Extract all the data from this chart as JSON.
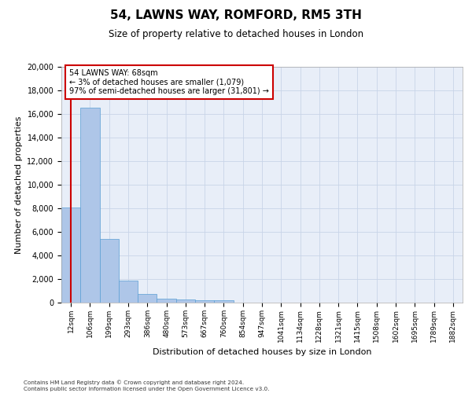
{
  "title": "54, LAWNS WAY, ROMFORD, RM5 3TH",
  "subtitle": "Size of property relative to detached houses in London",
  "xlabel": "Distribution of detached houses by size in London",
  "ylabel": "Number of detached properties",
  "categories": [
    "12sqm",
    "106sqm",
    "199sqm",
    "293sqm",
    "386sqm",
    "480sqm",
    "573sqm",
    "667sqm",
    "760sqm",
    "854sqm",
    "947sqm",
    "1041sqm",
    "1134sqm",
    "1228sqm",
    "1321sqm",
    "1415sqm",
    "1508sqm",
    "1602sqm",
    "1695sqm",
    "1789sqm",
    "1882sqm"
  ],
  "values": [
    8100,
    16500,
    5400,
    1850,
    750,
    350,
    270,
    230,
    200,
    0,
    0,
    0,
    0,
    0,
    0,
    0,
    0,
    0,
    0,
    0,
    0
  ],
  "bar_color": "#aec6e8",
  "bar_edge_color": "#5a9fd4",
  "grid_color": "#c8d4e8",
  "background_color": "#e8eef8",
  "property_line_color": "#cc0000",
  "annotation_text_line1": "54 LAWNS WAY: 68sqm",
  "annotation_text_line2": "← 3% of detached houses are smaller (1,079)",
  "annotation_text_line3": "97% of semi-detached houses are larger (31,801) →",
  "ylim": [
    0,
    20000
  ],
  "yticks": [
    0,
    2000,
    4000,
    6000,
    8000,
    10000,
    12000,
    14000,
    16000,
    18000,
    20000
  ],
  "footer_line1": "Contains HM Land Registry data © Crown copyright and database right 2024.",
  "footer_line2": "Contains public sector information licensed under the Open Government Licence v3.0."
}
